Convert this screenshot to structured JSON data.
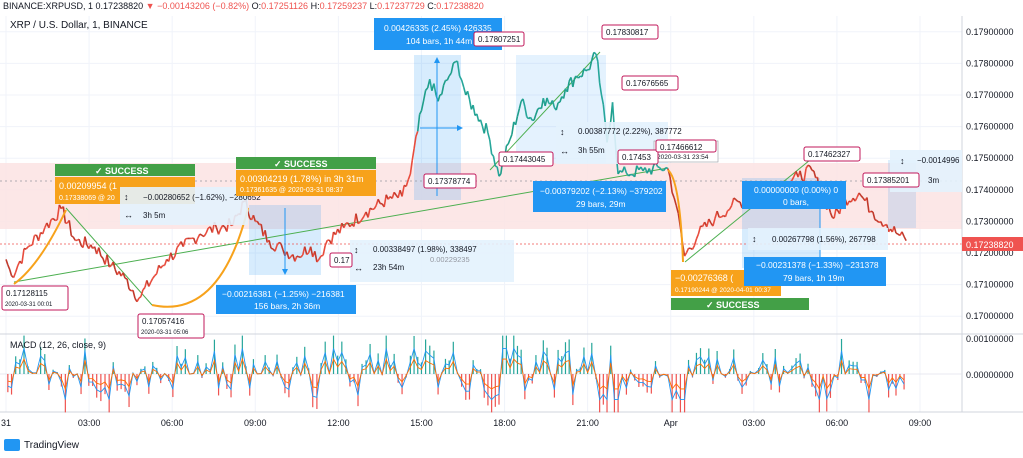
{
  "header": {
    "symbol": "BINANCE:XRPUSD, 1",
    "last": "0.17238820",
    "arrow": "▼",
    "change": "−0.00143206 (−0.82%)",
    "o_label": "O:",
    "o": "0.17251126",
    "h_label": "H:",
    "h": "0.17259237",
    "l_label": "L:",
    "l": "0.17237729",
    "c_label": "C:",
    "c": "0.17238820"
  },
  "chart_title": "XRP / U.S. Dollar, 1, BINANCE",
  "macd_title": "MACD (12, 26, close, 9)",
  "brand": "TradingView",
  "colors": {
    "up": "#26a69a",
    "down": "#ef5350",
    "orange": "#f7a21b",
    "green_line": "#4caf50",
    "blue_box": "#2196f3",
    "success": "#43a047",
    "callout": "#c2185b",
    "band": "#fbe3e3",
    "price_tag": "#ef5350",
    "grid": "#f0f3fa"
  },
  "chart_data": {
    "type": "line",
    "title": "XRP / U.S. Dollar, 1, BINANCE",
    "x_ticks": [
      "31",
      "03:00",
      "06:00",
      "09:00",
      "12:00",
      "15:00",
      "18:00",
      "21:00",
      "Apr",
      "03:00",
      "06:00",
      "09:00"
    ],
    "y_ticks": [
      "0.17900000",
      "0.17800000",
      "0.17700000",
      "0.17600000",
      "0.17500000",
      "0.17400000",
      "0.17300000",
      "0.17200000",
      "0.17100000",
      "0.17000000"
    ],
    "ylim": [
      0.1695,
      0.1795
    ],
    "x_range_hours": [
      0,
      33
    ],
    "last_price": "0.17238820",
    "price_series": [
      {
        "x": 0.0,
        "y": 0.1718
      },
      {
        "x": 0.2,
        "y": 0.17128
      },
      {
        "x": 0.8,
        "y": 0.1722
      },
      {
        "x": 1.4,
        "y": 0.1728
      },
      {
        "x": 2.0,
        "y": 0.1734
      },
      {
        "x": 2.5,
        "y": 0.1724
      },
      {
        "x": 3.2,
        "y": 0.1722
      },
      {
        "x": 3.8,
        "y": 0.1716
      },
      {
        "x": 4.3,
        "y": 0.1712
      },
      {
        "x": 4.8,
        "y": 0.17057
      },
      {
        "x": 5.3,
        "y": 0.1712
      },
      {
        "x": 5.8,
        "y": 0.1718
      },
      {
        "x": 6.4,
        "y": 0.1722
      },
      {
        "x": 7.0,
        "y": 0.1726
      },
      {
        "x": 7.6,
        "y": 0.1728
      },
      {
        "x": 8.2,
        "y": 0.1729
      },
      {
        "x": 8.6,
        "y": 0.17362
      },
      {
        "x": 9.0,
        "y": 0.173
      },
      {
        "x": 9.5,
        "y": 0.1724
      },
      {
        "x": 10.0,
        "y": 0.1721
      },
      {
        "x": 10.5,
        "y": 0.1719
      },
      {
        "x": 11.0,
        "y": 0.1722
      },
      {
        "x": 11.3,
        "y": 0.1718
      },
      {
        "x": 11.6,
        "y": 0.1724
      },
      {
        "x": 12.2,
        "y": 0.1728
      },
      {
        "x": 13.0,
        "y": 0.1733
      },
      {
        "x": 13.8,
        "y": 0.1737
      },
      {
        "x": 14.3,
        "y": 0.17379
      },
      {
        "x": 14.6,
        "y": 0.1745
      },
      {
        "x": 15.0,
        "y": 0.1765
      },
      {
        "x": 15.3,
        "y": 0.1775
      },
      {
        "x": 15.6,
        "y": 0.1768
      },
      {
        "x": 16.0,
        "y": 0.1776
      },
      {
        "x": 16.3,
        "y": 0.17807
      },
      {
        "x": 16.6,
        "y": 0.177
      },
      {
        "x": 17.0,
        "y": 0.1764
      },
      {
        "x": 17.4,
        "y": 0.1758
      },
      {
        "x": 17.8,
        "y": 0.17443
      },
      {
        "x": 18.2,
        "y": 0.1756
      },
      {
        "x": 18.6,
        "y": 0.1768
      },
      {
        "x": 19.0,
        "y": 0.1762
      },
      {
        "x": 19.4,
        "y": 0.1769
      },
      {
        "x": 19.8,
        "y": 0.1766
      },
      {
        "x": 20.2,
        "y": 0.1772
      },
      {
        "x": 20.6,
        "y": 0.1776
      },
      {
        "x": 21.0,
        "y": 0.1778
      },
      {
        "x": 21.3,
        "y": 0.1783
      },
      {
        "x": 21.5,
        "y": 0.177
      },
      {
        "x": 21.7,
        "y": 0.1755
      },
      {
        "x": 21.9,
        "y": 0.17677
      },
      {
        "x": 22.1,
        "y": 0.1745
      },
      {
        "x": 22.4,
        "y": 0.17453
      },
      {
        "x": 23.0,
        "y": 0.1746
      },
      {
        "x": 23.6,
        "y": 0.1747
      },
      {
        "x": 23.9,
        "y": 0.17467
      },
      {
        "x": 24.2,
        "y": 0.1735
      },
      {
        "x": 24.5,
        "y": 0.1719
      },
      {
        "x": 25.0,
        "y": 0.1726
      },
      {
        "x": 25.6,
        "y": 0.1731
      },
      {
        "x": 26.2,
        "y": 0.1735
      },
      {
        "x": 26.8,
        "y": 0.1737
      },
      {
        "x": 27.4,
        "y": 0.174
      },
      {
        "x": 28.0,
        "y": 0.1742
      },
      {
        "x": 28.6,
        "y": 0.1744
      },
      {
        "x": 29.1,
        "y": 0.17462
      },
      {
        "x": 29.5,
        "y": 0.1738
      },
      {
        "x": 29.9,
        "y": 0.1731
      },
      {
        "x": 30.3,
        "y": 0.1737
      },
      {
        "x": 30.8,
        "y": 0.1739
      },
      {
        "x": 31.3,
        "y": 0.1733
      },
      {
        "x": 31.8,
        "y": 0.1729
      },
      {
        "x": 32.2,
        "y": 0.1726
      },
      {
        "x": 32.5,
        "y": 0.17239
      }
    ],
    "macd": {
      "ylim": [
        -0.001,
        0.001
      ],
      "y_ticks": [
        "0.00100000",
        "0.00000000"
      ]
    }
  },
  "annotations": {
    "success_1": "✓ SUCCESS",
    "success_2": "✓ SUCCESS",
    "success_3": "✓ SUCCESS",
    "long_1_line1": "0.00209954 (1",
    "long_1_line2": "0.17338069 @ 20",
    "measure_1": "−0.00280652 (−1.62%), −280652",
    "measure_1_time": "3h 5m",
    "long_2_line1": "0.00304219 (1.78%) in 3h 31m",
    "long_2_line2": "0.17361635 @ 2020-03-31 08:37",
    "short_1_line1": "−0.00216381 (−1.25%) −216381",
    "short_1_line2": "156 bars, 2h 36m",
    "measure_2": "0.00338497 (1.98%), 338497",
    "measure_2_time": "23h 54m",
    "measure_2_ghost": "0.00229235",
    "box_top_line1": "0.00426335 (2.45%) 426335",
    "box_top_line2": "104 bars, 1h 44m",
    "measure_3": "0.00387772 (2.22%), 387772",
    "measure_3_time": "3h 55m",
    "short_2_line1": "−0.00379202 (−2.13%) −379202",
    "short_2_line2": "29 bars, 29m",
    "tooltip_date": "2020-03-31 23:54",
    "long_3_line1": "−0.00276368 (",
    "long_3_line2": "0.17190244 @ 2020-04-01 00:37",
    "box_zero_line1": "0.00000000 (0.00%) 0",
    "box_zero_line2": "0 bars,",
    "measure_4": "0.00267798 (1.56%), 267798",
    "short_3_line1": "−0.00231378 (−1.33%) −231378",
    "short_3_line2": "79 bars, 1h 19m",
    "measure_5": "−0.0014996",
    "measure_5_time": "3m",
    "callouts": [
      {
        "text": "0.17128115",
        "sub": "2020-03-31 00:01"
      },
      {
        "text": "0.17057416",
        "sub": "2020-03-31 05:06"
      },
      {
        "text": "0.17807251"
      },
      {
        "text": "0.17830817"
      },
      {
        "text": "0.17676565"
      },
      {
        "text": "0.17443045"
      },
      {
        "text": "0.17378774"
      },
      {
        "text": "0.17453"
      },
      {
        "text": "0.17466612"
      },
      {
        "text": "0.17462327"
      },
      {
        "text": "0.17385201"
      },
      {
        "text": "0.17"
      }
    ]
  }
}
